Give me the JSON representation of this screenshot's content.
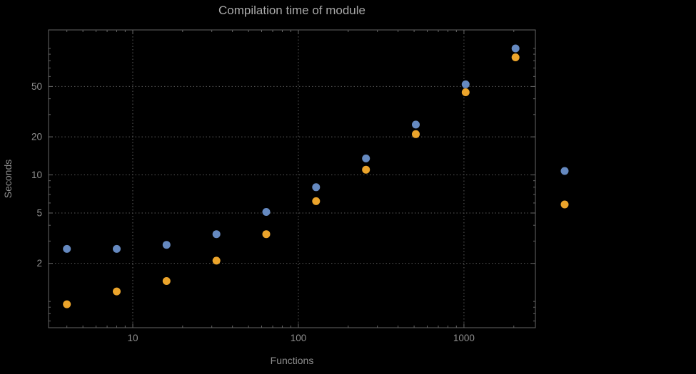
{
  "chart_data": {
    "type": "scatter",
    "title": "Compilation time of module",
    "xlabel": "Functions",
    "ylabel": "Seconds",
    "xscale": "log",
    "yscale": "log",
    "grid": true,
    "xlim": [
      3.1,
      2700
    ],
    "ylim": [
      0.62,
      140
    ],
    "x_ticks": [
      10,
      100,
      1000
    ],
    "y_ticks": [
      2,
      5,
      10,
      20,
      50
    ],
    "x": [
      4,
      8,
      16,
      32,
      64,
      128,
      256,
      512,
      1024,
      2048
    ],
    "series": [
      {
        "name": "blue",
        "color": "#6589c0",
        "values": [
          2.6,
          2.6,
          2.8,
          3.4,
          5.1,
          8,
          13.5,
          25,
          52,
          100
        ]
      },
      {
        "name": "orange",
        "color": "#eba42b",
        "values": [
          0.95,
          1.2,
          1.45,
          2.1,
          3.4,
          6.2,
          11,
          21,
          45,
          85
        ]
      }
    ],
    "legend_markers": [
      {
        "color": "#6589c0"
      },
      {
        "color": "#eba42b"
      }
    ],
    "colors": {
      "background": "#000000",
      "frame": "#666666",
      "grid": "#5a5a5a",
      "text": "#8f8f8f",
      "title_text": "#a9a9a9"
    }
  }
}
